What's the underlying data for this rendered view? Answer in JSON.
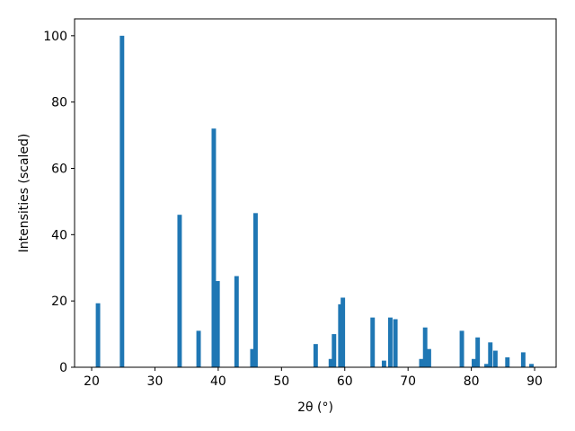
{
  "chart_data": {
    "type": "bar",
    "xlabel": "2θ (°)",
    "ylabel": "Intensities (scaled)",
    "x": [
      21.0,
      24.8,
      33.9,
      36.9,
      39.3,
      39.9,
      42.9,
      45.4,
      45.9,
      55.4,
      57.8,
      58.3,
      59.3,
      59.7,
      64.4,
      66.2,
      67.2,
      68.0,
      72.1,
      72.7,
      73.3,
      78.5,
      80.4,
      81.0,
      82.4,
      83.0,
      83.8,
      85.7,
      88.2,
      89.5
    ],
    "values": [
      19.3,
      100,
      46,
      11,
      72,
      26,
      27.5,
      5.5,
      46.5,
      7,
      2.5,
      10,
      19,
      21,
      15,
      2,
      15,
      14.5,
      2.5,
      12,
      5.5,
      11,
      2.5,
      9,
      1,
      7.5,
      5,
      3,
      4.5,
      1
    ],
    "color": "#1f77b4",
    "xlim": [
      17.3,
      93.4
    ],
    "xticks": [
      20,
      30,
      40,
      50,
      60,
      70,
      80,
      90
    ],
    "ylim": [
      0,
      105.1
    ],
    "yticks": [
      0,
      20,
      40,
      60,
      80,
      100
    ],
    "grid": false
  }
}
